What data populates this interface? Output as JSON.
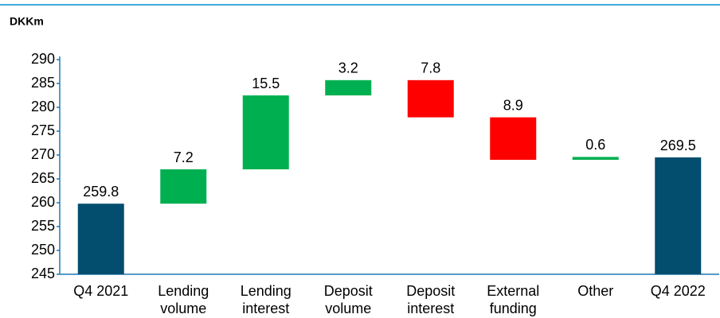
{
  "chart_data": {
    "type": "waterfall",
    "unit_label": "DKKm",
    "categories": [
      [
        "Q4 2021"
      ],
      [
        "Lending",
        "volume"
      ],
      [
        "Lending",
        "interest"
      ],
      [
        "Deposit",
        "volume"
      ],
      [
        "Deposit",
        "interest"
      ],
      [
        "External",
        "funding"
      ],
      [
        "Other"
      ],
      [
        "Q4 2022"
      ]
    ],
    "values": [
      259.8,
      7.2,
      15.5,
      3.2,
      -7.8,
      -8.9,
      0.6,
      269.5
    ],
    "value_labels": [
      "259.8",
      "7.2",
      "15.5",
      "3.2",
      "7.8",
      "8.9",
      "0.6",
      "269.5"
    ],
    "totals": [
      true,
      false,
      false,
      false,
      false,
      false,
      false,
      true
    ],
    "colors": {
      "total": "#034e6e",
      "increase": "#00b050",
      "decrease": "#ff0000"
    },
    "ylim": [
      245,
      290
    ],
    "yticks": [
      245,
      250,
      255,
      260,
      265,
      270,
      275,
      280,
      285,
      290
    ],
    "grid": false
  }
}
